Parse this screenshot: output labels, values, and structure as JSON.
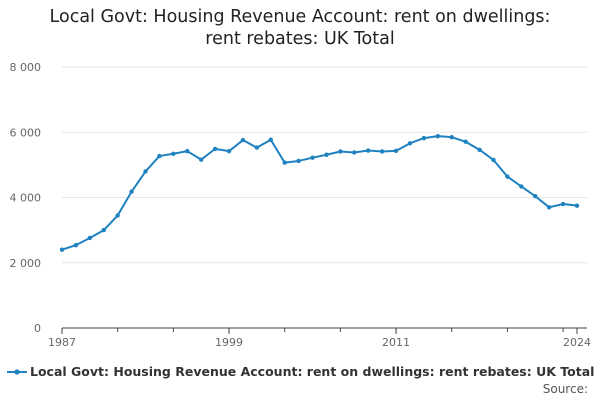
{
  "title_line1": "Local Govt: Housing Revenue Account: rent on dwellings:",
  "title_line2": "rent rebates: UK Total",
  "legend_label": "Local Govt: Housing Revenue Account: rent on dwellings: rent rebates: UK Total",
  "source_label": "Source:",
  "colors": {
    "series": "#1f82c0",
    "grid": "#e6e6e6",
    "axis": "#444444",
    "tick_text": "#666666"
  },
  "chart_data": {
    "type": "line",
    "title": "Local Govt: Housing Revenue Account: rent on dwellings: rent rebates: UK Total",
    "xlabel": "",
    "ylabel": "",
    "xlim": [
      1987,
      2024
    ],
    "ylim": [
      0,
      8000
    ],
    "x_ticks": [
      1987,
      1999,
      2011,
      2024
    ],
    "y_ticks": [
      0,
      2000,
      4000,
      6000,
      8000
    ],
    "y_tick_labels": [
      "0",
      "2 000",
      "4 000",
      "6 000",
      "8 000"
    ],
    "grid": true,
    "legend_position": "bottom",
    "series": [
      {
        "name": "Local Govt: Housing Revenue Account: rent on dwellings: rent rebates: UK Total",
        "x": [
          1987,
          1988,
          1989,
          1990,
          1991,
          1992,
          1993,
          1994,
          1995,
          1996,
          1997,
          1998,
          1999,
          2000,
          2001,
          2002,
          2003,
          2004,
          2005,
          2006,
          2007,
          2008,
          2009,
          2010,
          2011,
          2012,
          2013,
          2014,
          2015,
          2016,
          2017,
          2018,
          2019,
          2020,
          2021,
          2022,
          2023,
          2024
        ],
        "values": [
          2400,
          2540,
          2760,
          3000,
          3450,
          4180,
          4800,
          5270,
          5340,
          5420,
          5160,
          5490,
          5420,
          5760,
          5530,
          5770,
          5070,
          5120,
          5220,
          5310,
          5410,
          5380,
          5440,
          5410,
          5430,
          5660,
          5820,
          5880,
          5850,
          5710,
          5460,
          5150,
          4640,
          4340,
          4040,
          3700,
          3800,
          3750
        ]
      }
    ]
  }
}
